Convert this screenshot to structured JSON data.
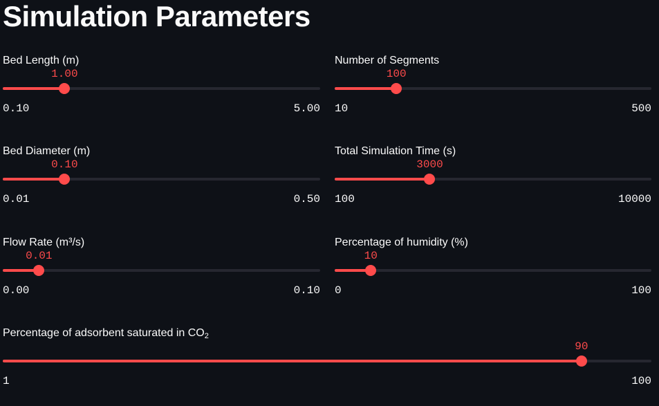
{
  "page": {
    "title": "Simulation Parameters"
  },
  "colors": {
    "background": "#0e1117",
    "accent": "#ff4b4b",
    "track": "#262730",
    "text": "#fafafa"
  },
  "sliders": {
    "bed_length": {
      "label": "Bed Length (m)",
      "value": "1.00",
      "min_label": "0.10",
      "max_label": "5.00",
      "min": 0.1,
      "max": 5.0,
      "num": 1.0
    },
    "num_segments": {
      "label": "Number of Segments",
      "value": "100",
      "min_label": "10",
      "max_label": "500",
      "min": 10,
      "max": 500,
      "num": 100
    },
    "bed_diameter": {
      "label": "Bed Diameter (m)",
      "value": "0.10",
      "min_label": "0.01",
      "max_label": "0.50",
      "min": 0.01,
      "max": 0.5,
      "num": 0.1
    },
    "sim_time": {
      "label": "Total Simulation Time (s)",
      "value": "3000",
      "min_label": "100",
      "max_label": "10000",
      "min": 100,
      "max": 10000,
      "num": 3000
    },
    "flow_rate": {
      "label": "Flow Rate (m³/s)",
      "value": "0.01",
      "min_label": "0.00",
      "max_label": "0.10",
      "min": 0.0,
      "max": 0.1,
      "num": 0.01
    },
    "humidity": {
      "label": "Percentage of humidity (%)",
      "value": "10",
      "min_label": "0",
      "max_label": "100",
      "min": 0,
      "max": 100,
      "num": 10
    },
    "saturation": {
      "label_prefix": "Percentage of adsorbent saturated in CO",
      "label_sub": "2",
      "value": "90",
      "min_label": "1",
      "max_label": "100",
      "min": 1,
      "max": 100,
      "num": 90
    }
  }
}
